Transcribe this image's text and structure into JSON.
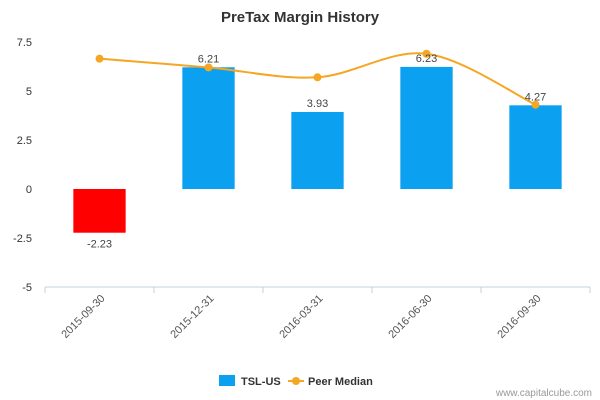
{
  "chart_data": {
    "type": "bar",
    "title": "PreTax Margin History",
    "categories": [
      "2015-09-30",
      "2015-12-31",
      "2016-03-31",
      "2016-06-30",
      "2016-09-30"
    ],
    "series": [
      {
        "name": "TSL-US",
        "type": "bar",
        "values": [
          -2.23,
          6.21,
          3.93,
          6.23,
          4.27
        ],
        "data_labels": [
          "-2.23",
          "6.21",
          "3.93",
          "6.23",
          "4.27"
        ],
        "color": "#0ba0f0",
        "negative_color": "#ff0000"
      },
      {
        "name": "Peer Median",
        "type": "line",
        "values": [
          6.65,
          6.2,
          5.7,
          6.9,
          4.3
        ],
        "color": "#f5a623"
      }
    ],
    "y_ticks": [
      "7.5",
      "5",
      "2.5",
      "0",
      "-2.5",
      "-5"
    ],
    "y_tick_values": [
      7.5,
      5,
      2.5,
      0,
      -2.5,
      -5
    ],
    "ylim": [
      -5,
      7.5
    ],
    "grid": false,
    "legend_position": "bottom-center",
    "credit": "www.capitalcube.com"
  }
}
